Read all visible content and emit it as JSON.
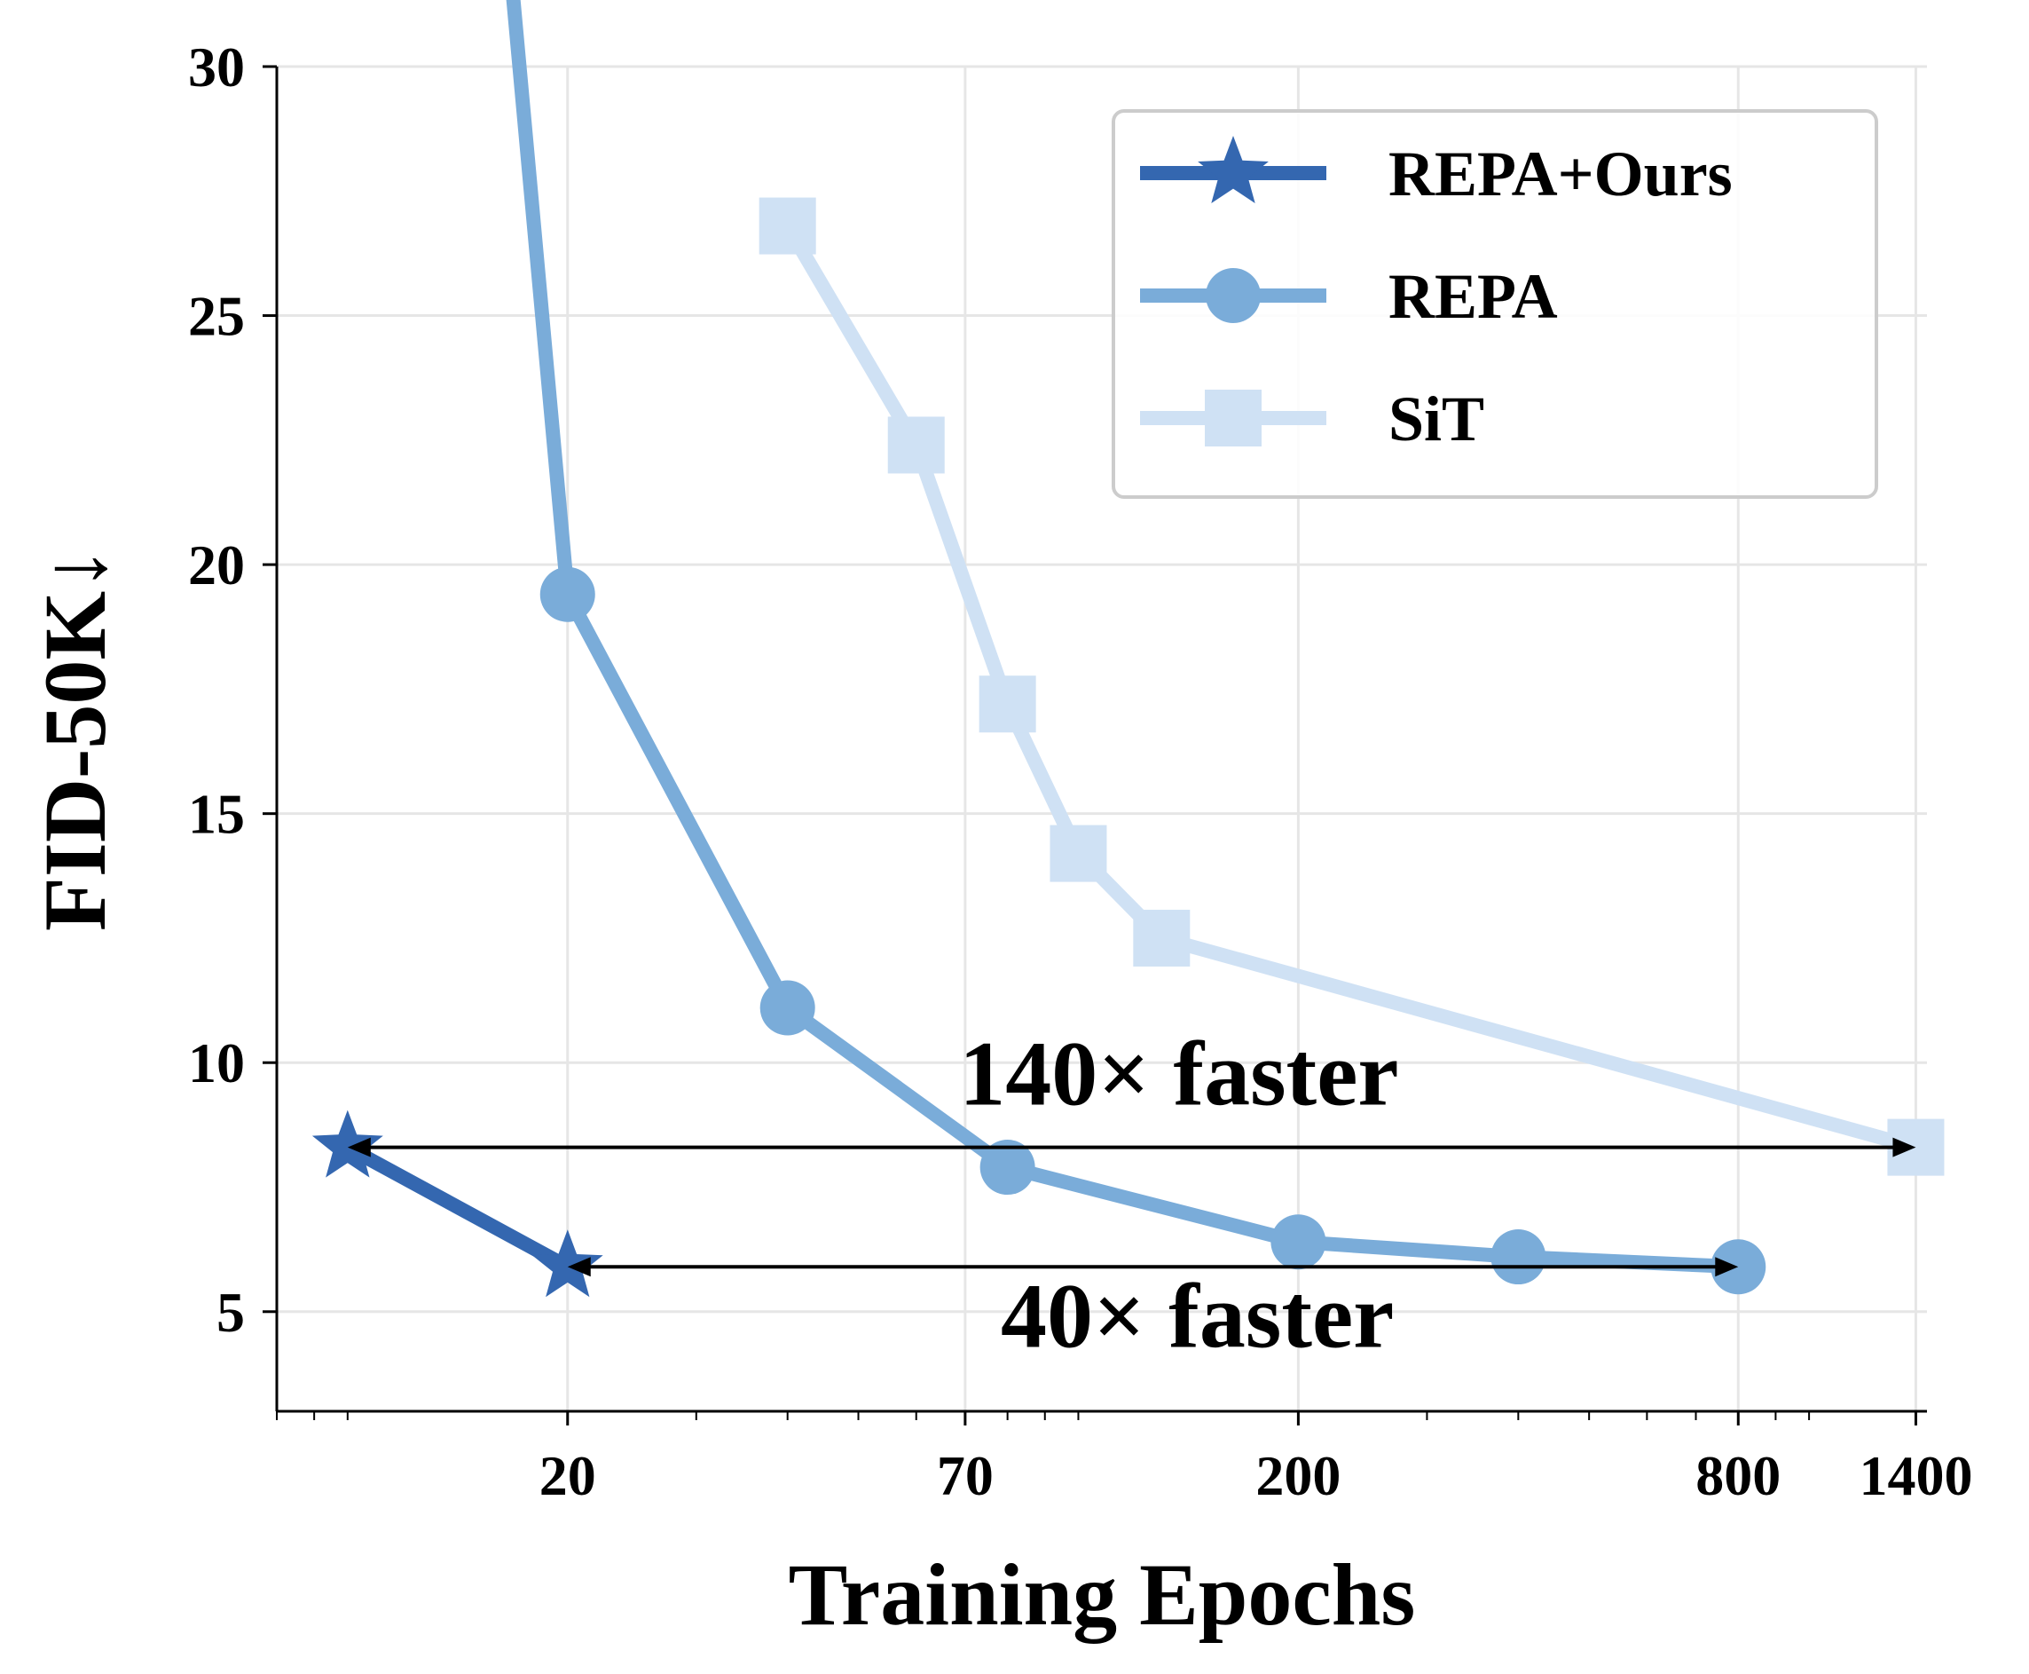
{
  "chart_data": {
    "type": "line",
    "xlabel": "Training Epochs",
    "ylabel": "FID-50K↓",
    "x_scale": "log",
    "xlim": [
      8,
      1450
    ],
    "ylim": [
      3,
      30
    ],
    "x_ticks": [
      20,
      70,
      200,
      800,
      1400
    ],
    "x_tick_labels": [
      "20",
      "70",
      "200",
      "800",
      "1400"
    ],
    "y_ticks": [
      5,
      10,
      15,
      20,
      25,
      30
    ],
    "y_tick_labels": [
      "5",
      "10",
      "15",
      "20",
      "25",
      "30"
    ],
    "grid": true,
    "legend_position": "top-right",
    "series": [
      {
        "name": "REPA+Ours",
        "color": "#3467b0",
        "marker": "star",
        "points": [
          [
            10,
            8.3
          ],
          [
            20,
            5.9
          ]
        ]
      },
      {
        "name": "REPA",
        "color": "#7aacd9",
        "marker": "circle",
        "points": [
          [
            16,
            35
          ],
          [
            20,
            19.4
          ],
          [
            40,
            11.1
          ],
          [
            80,
            7.9
          ],
          [
            200,
            6.4
          ],
          [
            400,
            6.1
          ],
          [
            800,
            5.9
          ]
        ]
      },
      {
        "name": "SiT",
        "color": "#cfe1f4",
        "marker": "square",
        "points": [
          [
            40,
            26.8
          ],
          [
            60,
            22.4
          ],
          [
            80,
            17.2
          ],
          [
            100,
            14.2
          ],
          [
            130,
            12.5
          ],
          [
            1400,
            8.3
          ]
        ]
      }
    ],
    "annotations": [
      {
        "text": "140× faster",
        "from": [
          10,
          8.3
        ],
        "to": [
          1400,
          8.3
        ]
      },
      {
        "text": "40× faster",
        "from": [
          20,
          5.9
        ],
        "to": [
          800,
          5.9
        ]
      }
    ]
  }
}
